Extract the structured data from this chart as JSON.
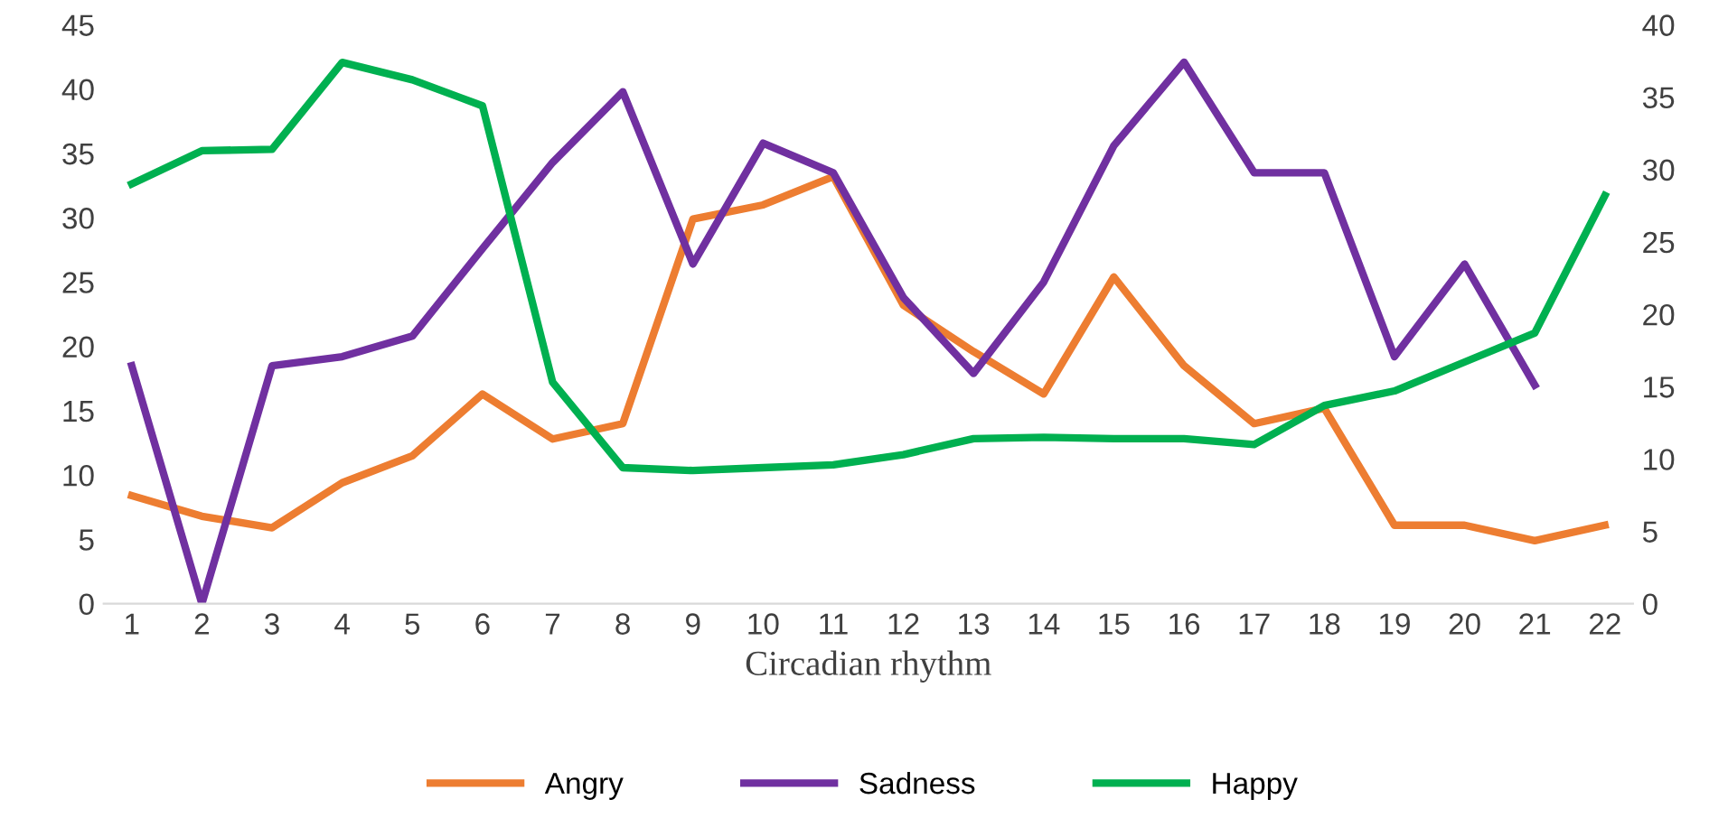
{
  "chart_data": {
    "type": "line",
    "xlabel": "Circadian rhythm",
    "categories": [
      "1",
      "2",
      "3",
      "4",
      "5",
      "6",
      "7",
      "8",
      "9",
      "10",
      "11",
      "12",
      "13",
      "14",
      "15",
      "16",
      "17",
      "18",
      "19",
      "20",
      "21",
      "22"
    ],
    "series": [
      {
        "name": "Angry",
        "color": "#ed7d31",
        "values": [
          8.4,
          6.8,
          5.9,
          9.4,
          11.5,
          16.3,
          12.8,
          14.0,
          29.9,
          31.0,
          33.2,
          23.2,
          19.6,
          16.3,
          25.4,
          18.5,
          14.0,
          15.2,
          6.1,
          6.1,
          4.9,
          6.1
        ]
      },
      {
        "name": "Sadness",
        "color": "#7030a0",
        "values": [
          18.5,
          0,
          18.5,
          19.2,
          20.8,
          27.6,
          34.3,
          39.8,
          26.4,
          35.8,
          33.5,
          23.8,
          17.9,
          25.0,
          35.6,
          42.1,
          33.5,
          33.5,
          19.2,
          26.4,
          17.0,
          null
        ]
      },
      {
        "name": "Happy",
        "color": "#00b050",
        "axis": "y2",
        "values": [
          29.0,
          31.3,
          31.4,
          37.4,
          36.2,
          34.4,
          15.3,
          9.4,
          9.2,
          9.4,
          9.6,
          10.3,
          11.4,
          11.5,
          11.4,
          11.4,
          11.0,
          13.7,
          14.7,
          16.7,
          18.7,
          28.2
        ]
      }
    ],
    "ylim": [
      0,
      45
    ],
    "yticks": [
      0,
      5,
      10,
      15,
      20,
      25,
      30,
      35,
      40,
      45
    ],
    "y2lim": [
      0,
      40
    ],
    "y2ticks": [
      0,
      5,
      10,
      15,
      20,
      25,
      30,
      35,
      40
    ],
    "legend": "bottom",
    "grid": false,
    "marker": "none",
    "line_style": "solid"
  }
}
